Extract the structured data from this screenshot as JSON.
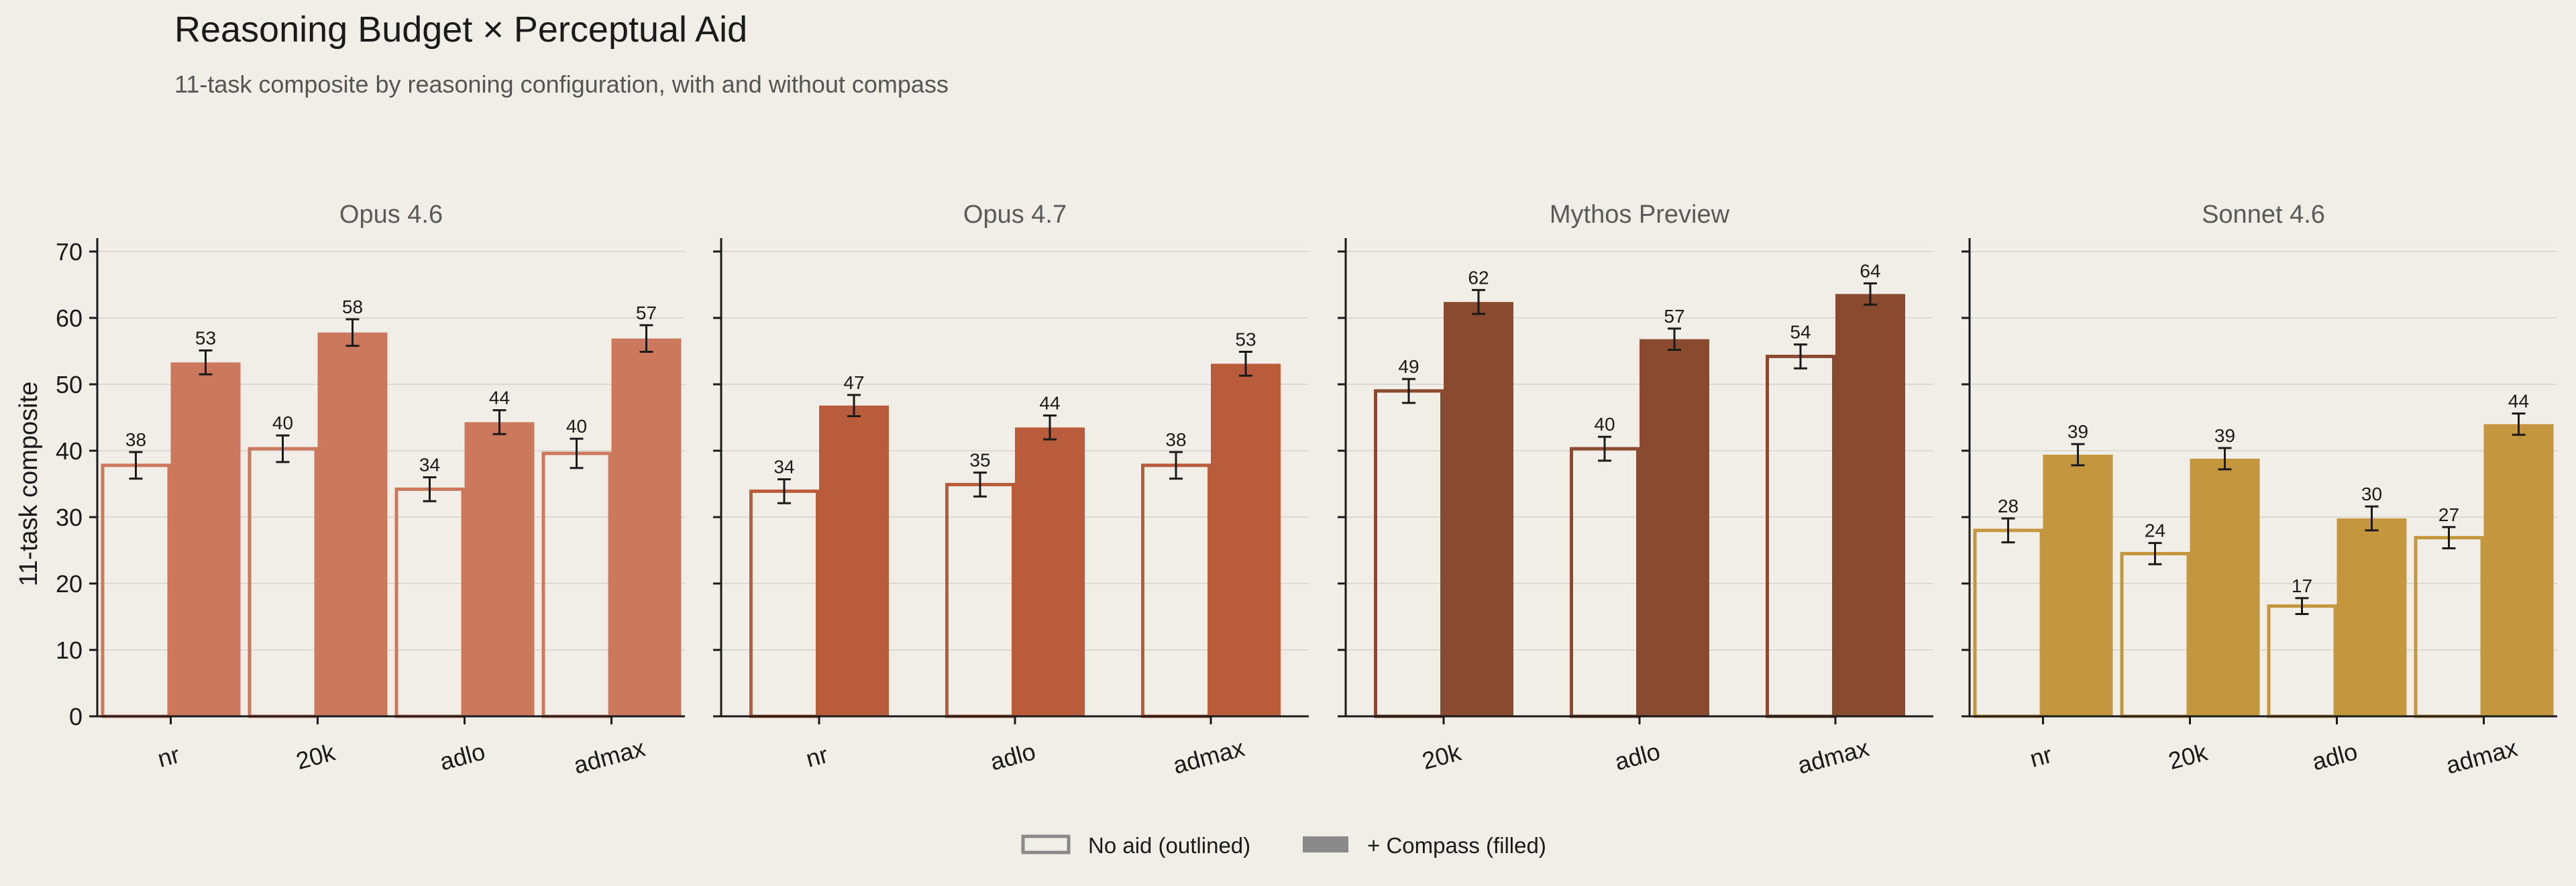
{
  "title": "Reasoning Budget × Perceptual Aid",
  "subtitle": "11-task composite by reasoning configuration, with and without compass",
  "legend": {
    "outlined_label": "No aid (outlined)",
    "filled_label": "+ Compass (filled)",
    "swatch_outline_color": "#8a8a8a",
    "swatch_fill_color": "#8a8a8a",
    "placement": "bottom-center"
  },
  "colors": {
    "background": "#f0eee6",
    "grid": "#dcd9d0",
    "axis": "#1a1a1a",
    "panel_title": "#5a5a5a"
  },
  "chart_data": [
    {
      "type": "bar",
      "title": "Opus 4.6",
      "ylabel": "11-task composite",
      "ylim": [
        0,
        72
      ],
      "yticks": [
        0,
        10,
        20,
        30,
        40,
        50,
        60,
        70
      ],
      "grid": true,
      "color": "#cc785c",
      "categories": [
        "nr",
        "20k",
        "adlo",
        "admax"
      ],
      "series": [
        {
          "name": "No aid (outlined)",
          "values": [
            38,
            40,
            34,
            40
          ],
          "values_precise": [
            37.8,
            40.3,
            34.2,
            39.6
          ],
          "errors": [
            2.0,
            2.0,
            1.8,
            2.2
          ],
          "labels": [
            "38",
            "40",
            "34",
            "40"
          ]
        },
        {
          "name": "+ Compass (filled)",
          "values": [
            53,
            58,
            44,
            57
          ],
          "values_precise": [
            53.3,
            57.8,
            44.3,
            56.9
          ],
          "errors": [
            1.8,
            2.0,
            1.8,
            2.0
          ],
          "labels": [
            "53",
            "58",
            "44",
            "57"
          ]
        }
      ]
    },
    {
      "type": "bar",
      "title": "Opus 4.7",
      "ylim": [
        0,
        72
      ],
      "yticks": [
        0,
        10,
        20,
        30,
        40,
        50,
        60,
        70
      ],
      "grid": true,
      "color": "#b85c3b",
      "categories": [
        "nr",
        "adlo",
        "admax"
      ],
      "series": [
        {
          "name": "No aid (outlined)",
          "values": [
            34,
            35,
            38
          ],
          "values_precise": [
            33.9,
            34.9,
            37.8
          ],
          "errors": [
            1.8,
            1.8,
            2.0
          ],
          "labels": [
            "34",
            "35",
            "38"
          ]
        },
        {
          "name": "+ Compass (filled)",
          "values": [
            47,
            44,
            53
          ],
          "values_precise": [
            46.8,
            43.5,
            53.1
          ],
          "errors": [
            1.6,
            1.8,
            1.8
          ],
          "labels": [
            "47",
            "44",
            "53"
          ]
        }
      ]
    },
    {
      "type": "bar",
      "title": "Mythos Preview",
      "ylim": [
        0,
        72
      ],
      "yticks": [
        0,
        10,
        20,
        30,
        40,
        50,
        60,
        70
      ],
      "grid": true,
      "color": "#8a4a2f",
      "categories": [
        "20k",
        "adlo",
        "admax"
      ],
      "series": [
        {
          "name": "No aid (outlined)",
          "values": [
            49,
            40,
            54
          ],
          "values_precise": [
            49.0,
            40.3,
            54.2
          ],
          "errors": [
            1.8,
            1.8,
            1.8
          ],
          "labels": [
            "49",
            "40",
            "54"
          ]
        },
        {
          "name": "+ Compass (filled)",
          "values": [
            62,
            57,
            64
          ],
          "values_precise": [
            62.4,
            56.8,
            63.6
          ],
          "errors": [
            1.8,
            1.6,
            1.6
          ],
          "labels": [
            "62",
            "57",
            "64"
          ]
        }
      ]
    },
    {
      "type": "bar",
      "title": "Sonnet 4.6",
      "ylim": [
        0,
        72
      ],
      "yticks": [
        0,
        10,
        20,
        30,
        40,
        50,
        60,
        70
      ],
      "grid": true,
      "color": "#c4963e",
      "categories": [
        "nr",
        "20k",
        "adlo",
        "admax"
      ],
      "series": [
        {
          "name": "No aid (outlined)",
          "values": [
            28,
            24,
            17,
            27
          ],
          "values_precise": [
            28.0,
            24.5,
            16.6,
            26.9
          ],
          "errors": [
            1.8,
            1.6,
            1.2,
            1.6
          ],
          "labels": [
            "28",
            "24",
            "17",
            "27"
          ]
        },
        {
          "name": "+ Compass (filled)",
          "values": [
            39,
            39,
            30,
            44
          ],
          "values_precise": [
            39.4,
            38.8,
            29.8,
            44.0
          ],
          "errors": [
            1.6,
            1.6,
            1.8,
            1.6
          ],
          "labels": [
            "39",
            "39",
            "30",
            "44"
          ]
        }
      ]
    }
  ]
}
